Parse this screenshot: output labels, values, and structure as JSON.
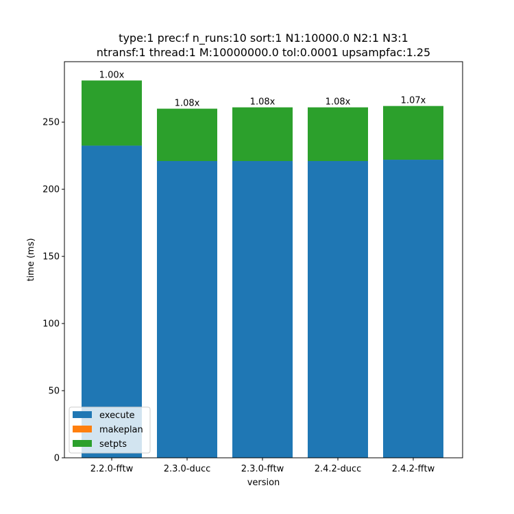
{
  "chart_data": {
    "type": "bar",
    "stacked": true,
    "title": [
      "type:1 prec:f n_runs:10 sort:1 N1:10000.0 N2:1 N3:1",
      "ntransf:1 thread:1 M:10000000.0 tol:0.0001 upsampfac:1.25"
    ],
    "xlabel": "version",
    "ylabel": "time (ms)",
    "ylim": [
      0,
      295
    ],
    "yticks": [
      0,
      50,
      100,
      150,
      200,
      250
    ],
    "categories": [
      "2.2.0-fftw",
      "2.3.0-ducc",
      "2.3.0-fftw",
      "2.4.2-ducc",
      "2.4.2-fftw"
    ],
    "series": [
      {
        "name": "execute",
        "color": "#1f77b4",
        "values": [
          232.5,
          221.0,
          221.0,
          221.0,
          222.0
        ]
      },
      {
        "name": "makeplan",
        "color": "#ff7f0e",
        "values": [
          0.0,
          0.0,
          0.0,
          0.0,
          0.0
        ]
      },
      {
        "name": "setpts",
        "color": "#2ca02c",
        "values": [
          48.5,
          39.0,
          40.0,
          40.0,
          40.0
        ]
      }
    ],
    "bar_labels": [
      "1.00x",
      "1.08x",
      "1.08x",
      "1.08x",
      "1.07x"
    ],
    "legend_position": "lower-left",
    "grid": false
  }
}
